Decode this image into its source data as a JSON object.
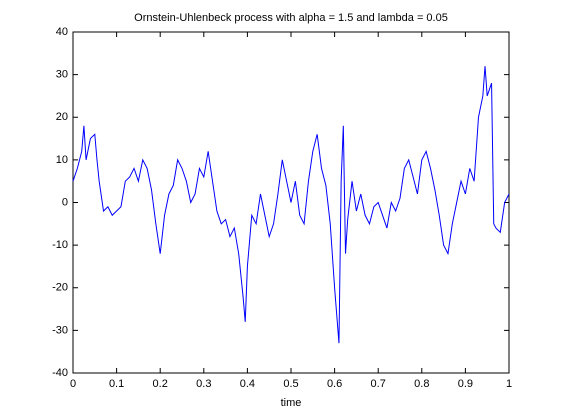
{
  "chart_data": {
    "type": "line",
    "title": "Ornstein-Uhlenbeck process with alpha = 1.5 and lambda = 0.05",
    "x_label": "time",
    "series": [
      {
        "name": null,
        "color": "#0000ff",
        "x": [
          0,
          0.01,
          0.02,
          0.025,
          0.03,
          0.04,
          0.05,
          0.055,
          0.06,
          0.07,
          0.08,
          0.09,
          0.1,
          0.11,
          0.12,
          0.13,
          0.14,
          0.15,
          0.16,
          0.17,
          0.18,
          0.19,
          0.2,
          0.21,
          0.22,
          0.23,
          0.24,
          0.25,
          0.26,
          0.27,
          0.28,
          0.29,
          0.3,
          0.31,
          0.32,
          0.33,
          0.34,
          0.35,
          0.36,
          0.37,
          0.38,
          0.39,
          0.395,
          0.4,
          0.41,
          0.42,
          0.43,
          0.44,
          0.45,
          0.46,
          0.47,
          0.48,
          0.49,
          0.5,
          0.51,
          0.52,
          0.53,
          0.54,
          0.55,
          0.56,
          0.57,
          0.58,
          0.59,
          0.6,
          0.61,
          0.615,
          0.62,
          0.625,
          0.63,
          0.64,
          0.65,
          0.66,
          0.67,
          0.68,
          0.69,
          0.7,
          0.71,
          0.72,
          0.73,
          0.74,
          0.75,
          0.76,
          0.77,
          0.78,
          0.79,
          0.8,
          0.81,
          0.82,
          0.83,
          0.84,
          0.85,
          0.86,
          0.87,
          0.88,
          0.89,
          0.9,
          0.91,
          0.92,
          0.93,
          0.94,
          0.945,
          0.95,
          0.96,
          0.965,
          0.97,
          0.98,
          0.99,
          1
        ],
        "values": [
          5,
          8,
          12,
          18,
          10,
          15,
          16,
          10,
          5,
          -2,
          -1,
          -3,
          -2,
          -1,
          5,
          6,
          8,
          5,
          10,
          8,
          3,
          -5,
          -12,
          -3,
          2,
          4,
          10,
          8,
          5,
          0,
          2,
          8,
          6,
          12,
          5,
          -2,
          -5,
          -4,
          -8,
          -6,
          -12,
          -22,
          -28,
          -15,
          -3,
          -5,
          2,
          -3,
          -8,
          -5,
          2,
          10,
          5,
          0,
          5,
          -3,
          -5,
          5,
          12,
          16,
          8,
          4,
          -5,
          -20,
          -33,
          5,
          18,
          -12,
          -4,
          5,
          -2,
          2,
          -3,
          -5,
          -1,
          0,
          -3,
          -6,
          0,
          -2,
          1,
          8,
          10,
          6,
          2,
          10,
          12,
          8,
          3,
          -3,
          -10,
          -12,
          -5,
          0,
          5,
          2,
          8,
          5,
          20,
          25,
          32,
          25,
          28,
          -5,
          -6,
          -7,
          0,
          2
        ]
      }
    ],
    "xlim": [
      0,
      1
    ],
    "xticks": [
      0,
      0.1,
      0.2,
      0.3,
      0.4,
      0.5,
      0.6,
      0.7,
      0.8,
      0.9,
      1
    ],
    "ylim": [
      -40,
      40
    ],
    "yticks": [
      -40,
      -30,
      -20,
      -10,
      0,
      10,
      20,
      30,
      40
    ],
    "grid": false
  }
}
